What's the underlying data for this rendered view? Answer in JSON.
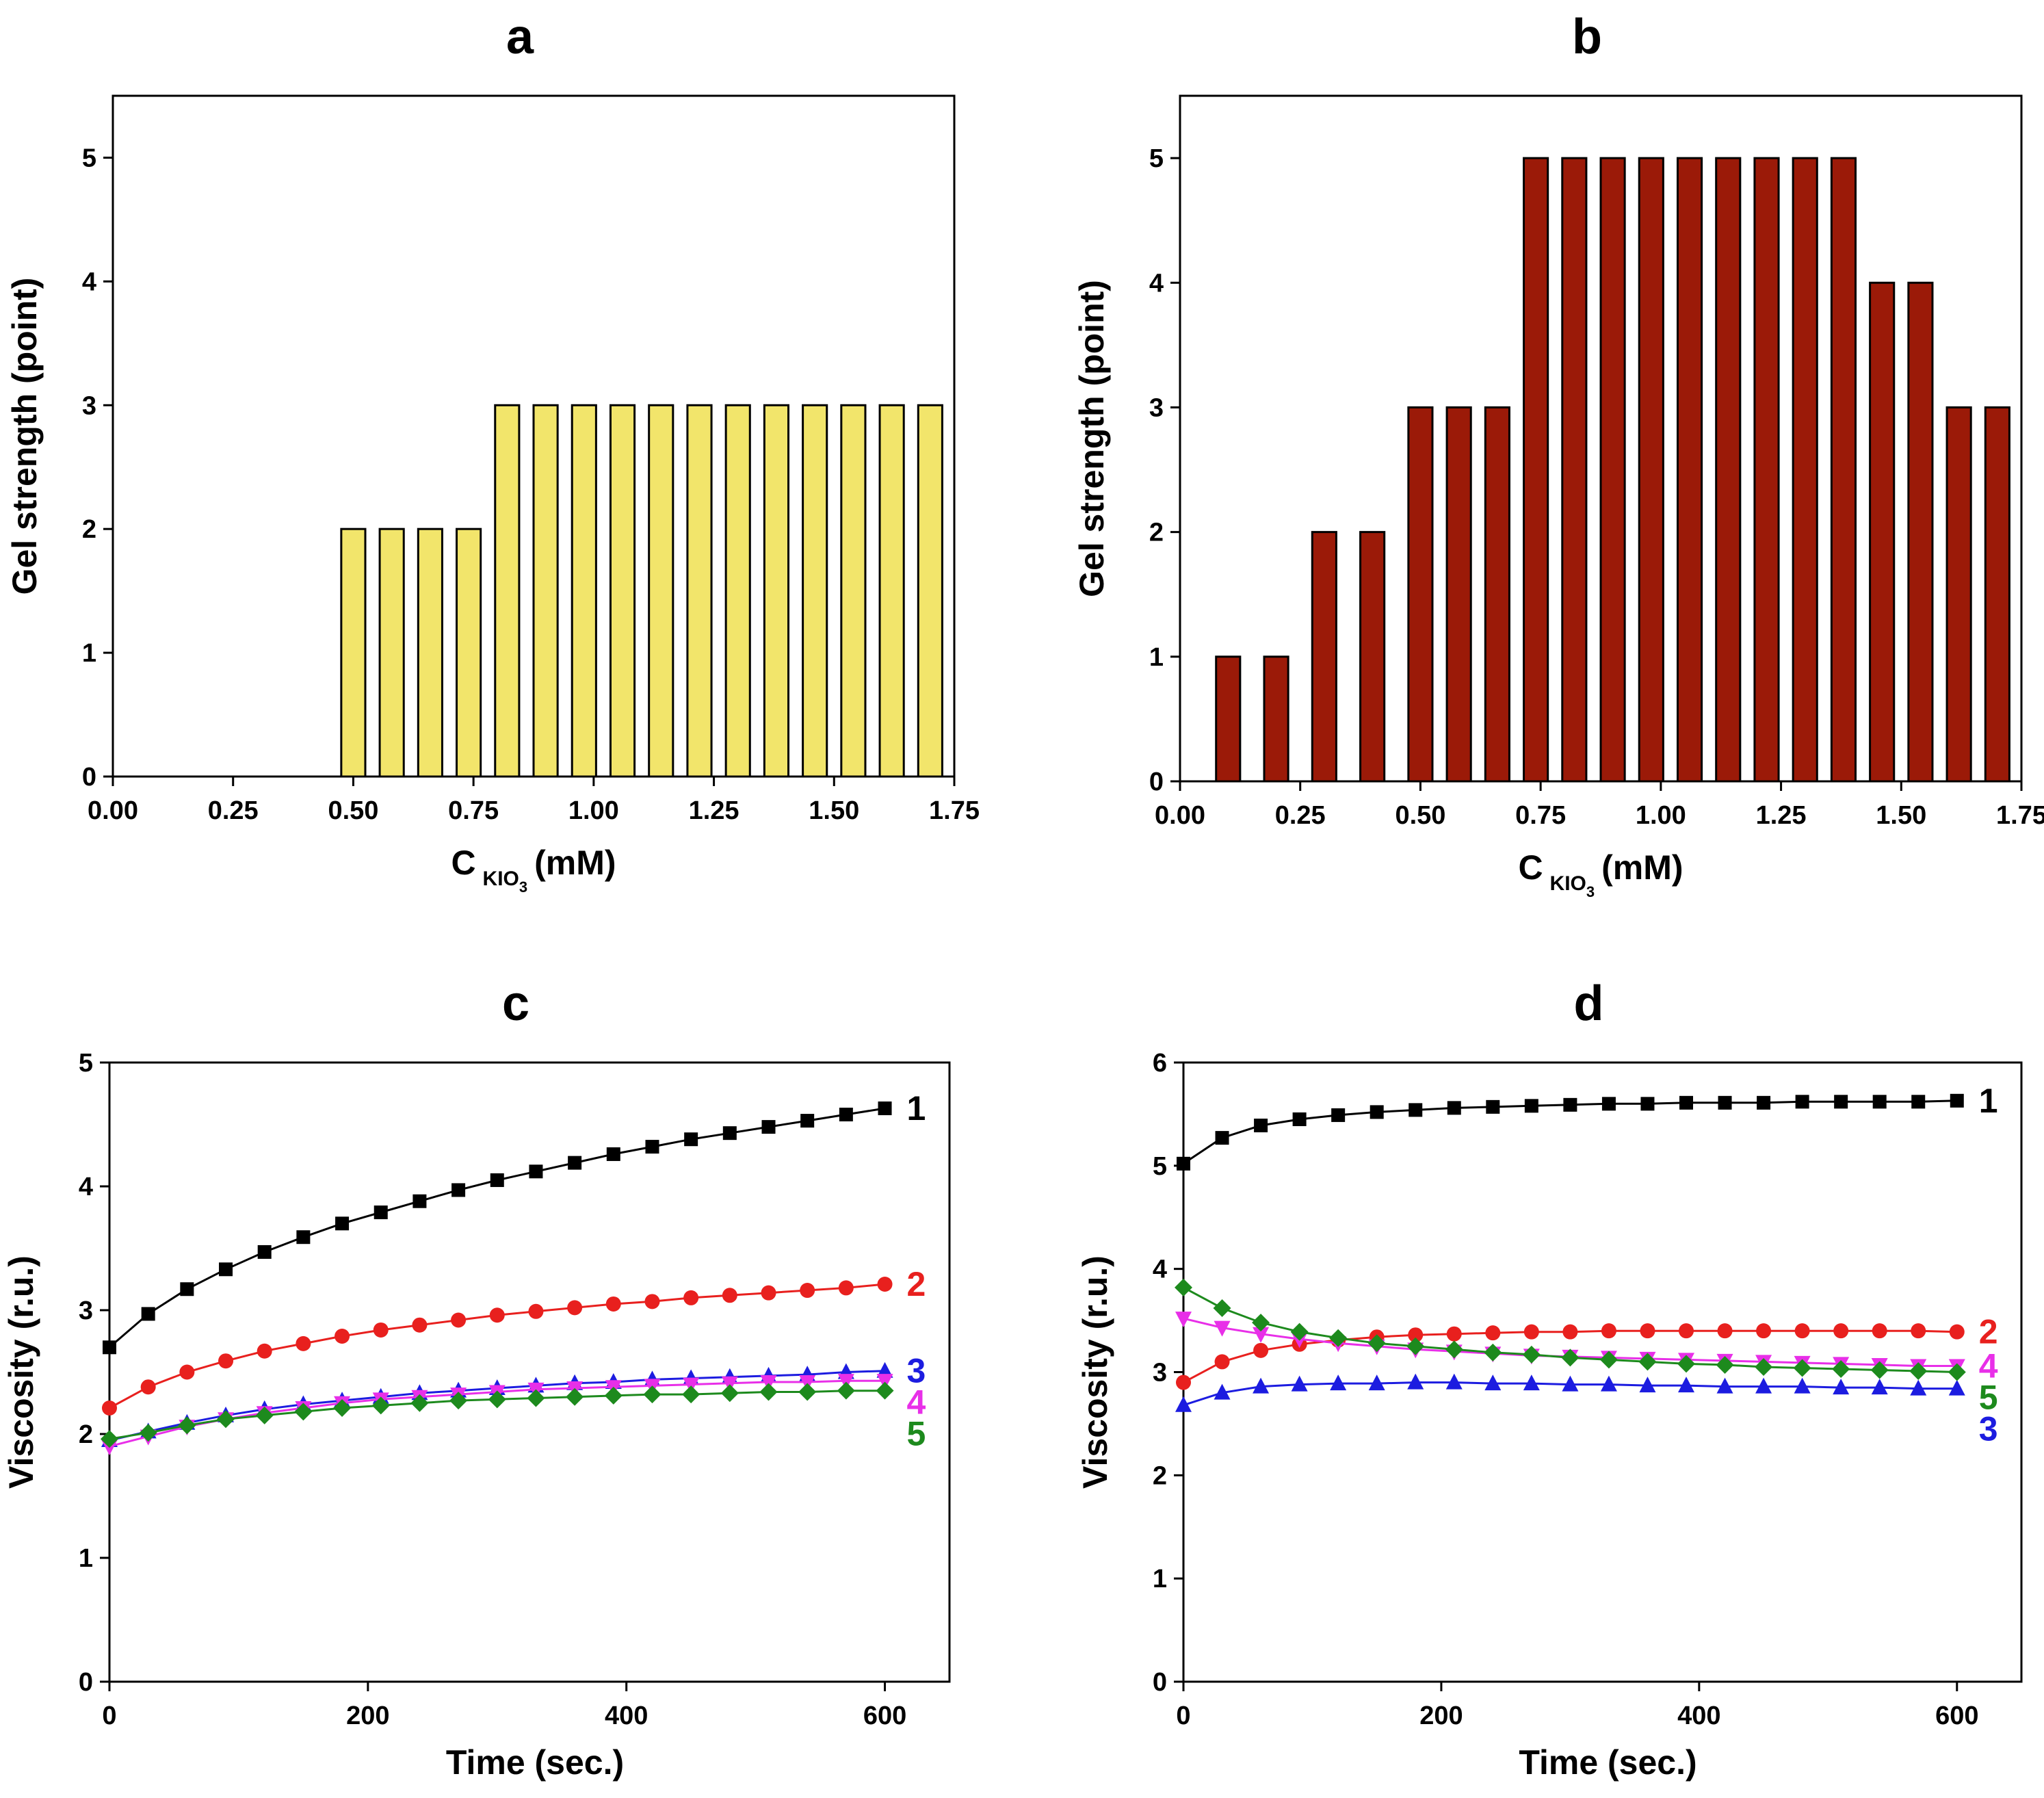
{
  "chart_data": [
    {
      "id": "a",
      "type": "bar",
      "title": "a",
      "ylabel": "Gel strength (point)",
      "xlabel_main": "C",
      "xlabel_sub_parts": [
        "KIO",
        "3"
      ],
      "xlabel_unit": "(mM)",
      "xlim": [
        0,
        1.75
      ],
      "ylim": [
        0,
        5.5
      ],
      "xticks": [
        "0.00",
        "0.25",
        "0.50",
        "0.75",
        "1.00",
        "1.25",
        "1.50",
        "1.75"
      ],
      "yticks": [
        "0",
        "1",
        "2",
        "3",
        "4",
        "5"
      ],
      "bar_color": "#F2E56B",
      "bar_width": 0.05,
      "x": [
        0.1,
        0.2,
        0.3,
        0.4,
        0.5,
        0.58,
        0.66,
        0.74,
        0.82,
        0.9,
        0.98,
        1.06,
        1.14,
        1.22,
        1.3,
        1.38,
        1.46,
        1.54,
        1.62,
        1.7
      ],
      "values": [
        0,
        0,
        0,
        0,
        2,
        2,
        2,
        2,
        3,
        3,
        3,
        3,
        3,
        3,
        3,
        3,
        3,
        3,
        3,
        3
      ]
    },
    {
      "id": "b",
      "type": "bar",
      "title": "b",
      "ylabel": "Gel strength (point)",
      "xlabel_main": "C",
      "xlabel_sub_parts": [
        "KIO",
        "3"
      ],
      "xlabel_unit": "(mM)",
      "xlim": [
        0,
        1.75
      ],
      "ylim": [
        0,
        5.5
      ],
      "xticks": [
        "0.00",
        "0.25",
        "0.50",
        "0.75",
        "1.00",
        "1.25",
        "1.50",
        "1.75"
      ],
      "yticks": [
        "0",
        "1",
        "2",
        "3",
        "4",
        "5"
      ],
      "bar_color": "#9B1A08",
      "bar_width": 0.05,
      "x": [
        0.1,
        0.2,
        0.3,
        0.4,
        0.5,
        0.58,
        0.66,
        0.74,
        0.82,
        0.9,
        0.98,
        1.06,
        1.14,
        1.22,
        1.3,
        1.38,
        1.46,
        1.54,
        1.62,
        1.7
      ],
      "values": [
        1,
        1,
        2,
        2,
        3,
        3,
        3,
        5,
        5,
        5,
        5,
        5,
        5,
        5,
        5,
        5,
        4,
        4,
        3,
        3
      ]
    },
    {
      "id": "c",
      "type": "line",
      "title": "c",
      "ylabel": "Viscosity (r.u.)",
      "xlabel": "Time (sec.)",
      "xlim": [
        0,
        650
      ],
      "ylim": [
        0,
        5
      ],
      "xticks": [
        "0",
        "200",
        "400",
        "600"
      ],
      "yticks": [
        "0",
        "1",
        "2",
        "3",
        "4",
        "5"
      ],
      "x": [
        0,
        30,
        60,
        90,
        120,
        150,
        180,
        210,
        240,
        270,
        300,
        330,
        360,
        390,
        420,
        450,
        480,
        510,
        540,
        570,
        600
      ],
      "series": [
        {
          "name": "1",
          "color": "#000000",
          "marker": "square",
          "values": [
            2.7,
            2.97,
            3.17,
            3.33,
            3.47,
            3.59,
            3.7,
            3.79,
            3.88,
            3.97,
            4.05,
            4.12,
            4.19,
            4.26,
            4.32,
            4.38,
            4.43,
            4.48,
            4.53,
            4.58,
            4.63
          ]
        },
        {
          "name": "2",
          "color": "#E8201E",
          "marker": "circle",
          "values": [
            2.21,
            2.38,
            2.5,
            2.59,
            2.67,
            2.73,
            2.79,
            2.84,
            2.88,
            2.92,
            2.96,
            2.99,
            3.02,
            3.05,
            3.07,
            3.1,
            3.12,
            3.14,
            3.16,
            3.18,
            3.21
          ]
        },
        {
          "name": "3",
          "color": "#1C1CE0",
          "marker": "triangle-up",
          "values": [
            1.95,
            2.02,
            2.09,
            2.15,
            2.2,
            2.24,
            2.27,
            2.3,
            2.33,
            2.35,
            2.37,
            2.39,
            2.41,
            2.42,
            2.44,
            2.45,
            2.46,
            2.47,
            2.48,
            2.5,
            2.51
          ]
        },
        {
          "name": "4",
          "color": "#E82FE8",
          "marker": "triangle-down",
          "values": [
            1.9,
            1.98,
            2.06,
            2.12,
            2.17,
            2.21,
            2.25,
            2.28,
            2.3,
            2.32,
            2.34,
            2.36,
            2.37,
            2.38,
            2.39,
            2.4,
            2.41,
            2.42,
            2.42,
            2.43,
            2.43
          ]
        },
        {
          "name": "5",
          "color": "#1D8A1D",
          "marker": "diamond",
          "values": [
            1.96,
            2.01,
            2.07,
            2.12,
            2.15,
            2.18,
            2.21,
            2.23,
            2.25,
            2.27,
            2.28,
            2.29,
            2.3,
            2.31,
            2.32,
            2.32,
            2.33,
            2.34,
            2.34,
            2.35,
            2.35
          ]
        }
      ]
    },
    {
      "id": "d",
      "type": "line",
      "title": "d",
      "ylabel": "Viscosity (r.u.)",
      "xlabel": "Time (sec.)",
      "xlim": [
        0,
        650
      ],
      "ylim": [
        0,
        6
      ],
      "xticks": [
        "0",
        "200",
        "400",
        "600"
      ],
      "yticks": [
        "0",
        "1",
        "2",
        "3",
        "4",
        "5",
        "6"
      ],
      "x": [
        0,
        30,
        60,
        90,
        120,
        150,
        180,
        210,
        240,
        270,
        300,
        330,
        360,
        390,
        420,
        450,
        480,
        510,
        540,
        570,
        600
      ],
      "series": [
        {
          "name": "1",
          "color": "#000000",
          "marker": "square",
          "values": [
            5.02,
            5.27,
            5.39,
            5.45,
            5.49,
            5.52,
            5.54,
            5.56,
            5.57,
            5.58,
            5.59,
            5.6,
            5.6,
            5.61,
            5.61,
            5.61,
            5.62,
            5.62,
            5.62,
            5.62,
            5.63
          ]
        },
        {
          "name": "2",
          "color": "#E8201E",
          "marker": "circle",
          "values": [
            2.9,
            3.1,
            3.21,
            3.27,
            3.31,
            3.34,
            3.36,
            3.37,
            3.38,
            3.39,
            3.39,
            3.4,
            3.4,
            3.4,
            3.4,
            3.4,
            3.4,
            3.4,
            3.4,
            3.4,
            3.39
          ]
        },
        {
          "name": "3",
          "color": "#1C1CE0",
          "marker": "triangle-up",
          "values": [
            2.68,
            2.8,
            2.86,
            2.88,
            2.89,
            2.89,
            2.9,
            2.9,
            2.89,
            2.89,
            2.88,
            2.88,
            2.87,
            2.87,
            2.86,
            2.86,
            2.86,
            2.85,
            2.85,
            2.84,
            2.84
          ]
        },
        {
          "name": "4",
          "color": "#E82FE8",
          "marker": "triangle-down",
          "values": [
            3.52,
            3.43,
            3.37,
            3.32,
            3.28,
            3.25,
            3.22,
            3.2,
            3.18,
            3.16,
            3.15,
            3.14,
            3.13,
            3.12,
            3.11,
            3.1,
            3.09,
            3.08,
            3.07,
            3.06,
            3.06
          ]
        },
        {
          "name": "5",
          "color": "#1D8A1D",
          "marker": "diamond",
          "values": [
            3.82,
            3.62,
            3.48,
            3.39,
            3.33,
            3.28,
            3.25,
            3.22,
            3.19,
            3.17,
            3.14,
            3.12,
            3.1,
            3.08,
            3.07,
            3.05,
            3.04,
            3.03,
            3.02,
            3.01,
            3.0
          ]
        }
      ]
    }
  ]
}
